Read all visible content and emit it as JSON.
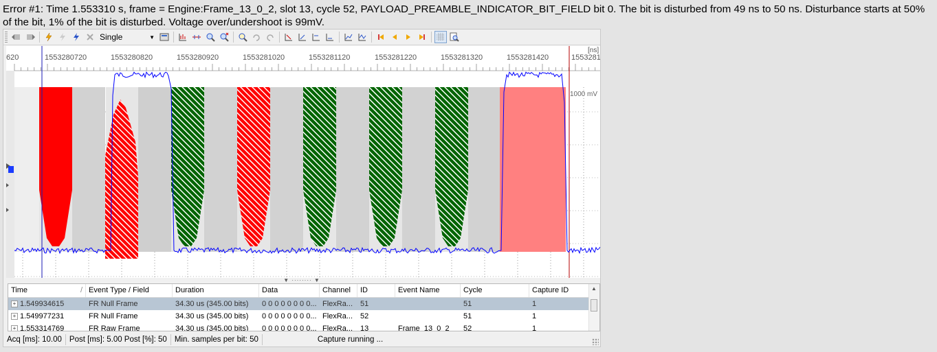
{
  "error_message": "Error #1: Time 1.553310 s, frame = Engine:Frame_13_0_2, slot 13, cycle 52, PAYLOAD_PREAMBLE_INDICATOR_BIT_FIELD bit 0. The bit is disturbed from 49 ns to 50 ns. Disturbance starts at 50% of the bit, 1% of the bit is disturbed. Voltage over/undershoot is 99mV.",
  "toolbar": {
    "mode_select": "Single",
    "icons": [
      "grip-icon",
      "channel-left-icon",
      "channel-right-icon",
      "trigger-icon",
      "trigger-disabled-icon",
      "lightning-icon",
      "close-icon",
      "select-dropdown-icon",
      "export-icon",
      "chart-icon",
      "zoom-range-icon",
      "zoom-in-icon",
      "zoom-out-icon",
      "zoom-fit-icon",
      "undo-icon",
      "redo-icon",
      "marker-1-icon",
      "marker-2-icon",
      "marker-3-icon",
      "marker-4-icon",
      "graph-1-icon",
      "graph-2-icon",
      "first-icon",
      "prev-icon",
      "next-icon",
      "last-icon",
      "grid-icon",
      "magnify-icon"
    ]
  },
  "chart_data": {
    "type": "line",
    "unit_label": "[ns]",
    "x_tick_labels": [
      "620",
      "1553280720",
      "1553280820",
      "1553280920",
      "1553281020",
      "1553281120",
      "1553281220",
      "1553281320",
      "1553281420",
      "1553281"
    ],
    "voltage_label": "1000 mV",
    "bit_markers": [
      {
        "color": "#ff0000",
        "pattern": "solid",
        "kind": "error"
      },
      {
        "color": "#ff0000",
        "pattern": "hatched",
        "kind": "error"
      },
      {
        "color": "#006400",
        "pattern": "hatched",
        "kind": "ok"
      },
      {
        "color": "#ff0000",
        "pattern": "hatched",
        "kind": "error"
      },
      {
        "color": "#006400",
        "pattern": "hatched",
        "kind": "ok"
      },
      {
        "color": "#006400",
        "pattern": "hatched",
        "kind": "ok"
      },
      {
        "color": "#006400",
        "pattern": "hatched",
        "kind": "ok"
      }
    ],
    "highlight_color": "#ff8080",
    "signal_color": "#0000ff",
    "grid": true
  },
  "table": {
    "columns": [
      "Time",
      "Event Type / Field",
      "Duration",
      "Data",
      "Channel",
      "ID",
      "Event Name",
      "Cycle",
      "Capture ID"
    ],
    "rows": [
      {
        "time": "1.549934615",
        "event_type": "FR Null Frame",
        "duration": "34.30 us (345.00 bits)",
        "data": "0 0 0 0 0 0 0 0...",
        "channel": "FlexRa...",
        "id": "51",
        "event_name": "",
        "cycle": "51",
        "capture_id": "1"
      },
      {
        "time": "1.549977231",
        "event_type": "FR Null Frame",
        "duration": "34.30 us (345.00 bits)",
        "data": "0 0 0 0 0 0 0 0...",
        "channel": "FlexRa...",
        "id": "52",
        "event_name": "",
        "cycle": "51",
        "capture_id": "1"
      },
      {
        "time": "1.553314769",
        "event_type": "FR Raw Frame",
        "duration": "34.30 us (345.00 bits)",
        "data": "0 0 0 0 0 0 0 0...",
        "channel": "FlexRa...",
        "id": "13",
        "event_name": "Frame_13_0_2",
        "cycle": "52",
        "capture_id": "1"
      }
    ]
  },
  "status": {
    "acq": "Acq [ms]: 10.00",
    "post": "Post [ms]: 5.00 Post [%]: 50",
    "min_samples": "Min. samples per bit: 50",
    "capture": "Capture running ..."
  }
}
